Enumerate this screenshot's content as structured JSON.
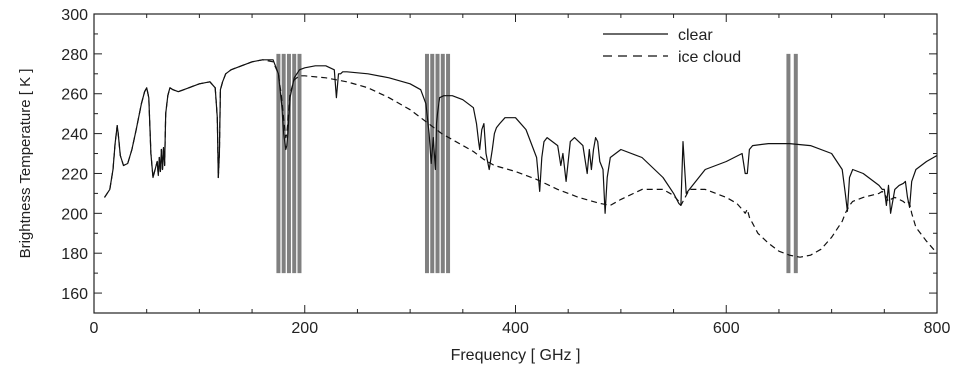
{
  "chart_data": {
    "type": "line",
    "title": "",
    "xlabel": "Frequency [ GHz ]",
    "ylabel": "Brightness Temperature [ K ]",
    "xlim": [
      0,
      800
    ],
    "ylim": [
      150,
      300
    ],
    "x_ticks": [
      0,
      200,
      400,
      600,
      800
    ],
    "y_ticks": [
      160,
      180,
      200,
      220,
      240,
      260,
      280,
      300
    ],
    "legend_position": "top-right",
    "grid": false,
    "band_groups": [
      {
        "x": [
          175,
          180,
          185,
          190,
          195
        ],
        "ymin": 170,
        "ymax": 280
      },
      {
        "x": [
          316,
          321,
          326,
          331,
          336
        ],
        "ymin": 170,
        "ymax": 280
      },
      {
        "x": [
          659,
          666
        ],
        "ymin": 170,
        "ymax": 280
      }
    ],
    "series": [
      {
        "name": "clear",
        "style": "solid",
        "x": [
          10,
          15,
          18,
          20,
          22,
          23,
          25,
          28,
          32,
          36,
          40,
          45,
          48,
          50,
          52,
          54,
          56,
          58,
          60,
          61,
          62,
          63,
          64,
          65,
          66,
          67,
          68,
          70,
          72,
          75,
          80,
          90,
          100,
          110,
          115,
          117,
          118,
          119,
          120,
          122,
          125,
          130,
          140,
          150,
          160,
          170,
          175,
          178,
          180,
          182,
          183,
          184,
          186,
          190,
          195,
          200,
          210,
          220,
          228,
          230,
          232,
          234,
          236,
          240,
          260,
          280,
          300,
          310,
          315,
          318,
          320,
          322,
          324,
          325,
          326,
          328,
          332,
          340,
          350,
          360,
          363,
          365,
          366,
          368,
          370,
          372,
          375,
          378,
          380,
          382,
          385,
          390,
          400,
          410,
          420,
          423,
          425,
          427,
          430,
          435,
          440,
          443,
          445,
          448,
          452,
          456,
          460,
          464,
          468,
          470,
          472,
          474,
          476,
          478,
          480,
          483,
          485,
          487,
          490,
          500,
          520,
          540,
          550,
          555,
          557,
          559,
          562,
          565,
          580,
          600,
          615,
          618,
          620,
          622,
          625,
          640,
          660,
          680,
          700,
          710,
          713,
          715,
          717,
          720,
          730,
          745,
          748,
          750,
          752,
          754,
          756,
          760,
          764,
          768,
          770,
          772,
          774,
          776,
          780,
          790,
          800
        ],
        "y": [
          208,
          212,
          222,
          235,
          244,
          240,
          229,
          224,
          225,
          232,
          242,
          255,
          261,
          263,
          258,
          230,
          218,
          222,
          226,
          219,
          228,
          221,
          232,
          222,
          233,
          224,
          250,
          259,
          263,
          262,
          261,
          263,
          265,
          266,
          263,
          248,
          218,
          230,
          262,
          266,
          270,
          272,
          274,
          276,
          277,
          277,
          270,
          255,
          240,
          232,
          234,
          240,
          258,
          268,
          272,
          273,
          274,
          274,
          272,
          258,
          270,
          270,
          271,
          271,
          270,
          268,
          265,
          262,
          255,
          240,
          225,
          238,
          222,
          245,
          250,
          258,
          259,
          259,
          257,
          253,
          245,
          236,
          232,
          242,
          245,
          230,
          222,
          232,
          240,
          243,
          245,
          248,
          248,
          242,
          228,
          211,
          228,
          236,
          238,
          236,
          234,
          224,
          230,
          216,
          236,
          238,
          236,
          234,
          220,
          232,
          222,
          232,
          238,
          236,
          226,
          222,
          200,
          218,
          228,
          232,
          228,
          218,
          210,
          205,
          204,
          236,
          210,
          212,
          222,
          226,
          230,
          220,
          220,
          232,
          234,
          235,
          235,
          234,
          230,
          222,
          210,
          201,
          218,
          222,
          220,
          214,
          212,
          212,
          204,
          214,
          200,
          212,
          214,
          215,
          216,
          208,
          203,
          216,
          222,
          226,
          229
        ]
      },
      {
        "name": "ice cloud",
        "style": "dashed",
        "x": [
          10,
          15,
          18,
          20,
          22,
          23,
          25,
          28,
          32,
          36,
          40,
          45,
          48,
          50,
          52,
          54,
          56,
          58,
          60,
          61,
          62,
          63,
          64,
          65,
          66,
          67,
          68,
          70,
          72,
          75,
          80,
          90,
          100,
          110,
          115,
          117,
          118,
          119,
          120,
          122,
          125,
          130,
          140,
          150,
          160,
          170,
          175,
          178,
          180,
          182,
          183,
          184,
          186,
          190,
          195,
          200,
          220,
          240,
          260,
          280,
          300,
          310,
          320,
          330,
          340,
          360,
          370,
          380,
          400,
          420,
          440,
          460,
          480,
          490,
          500,
          520,
          540,
          550,
          555,
          557,
          559,
          562,
          565,
          580,
          600,
          610,
          615,
          618,
          620,
          622,
          625,
          630,
          640,
          650,
          660,
          670,
          680,
          690,
          700,
          710,
          713,
          715,
          717,
          720,
          730,
          745,
          748,
          750,
          752,
          754,
          756,
          760,
          764,
          768,
          770,
          772,
          774,
          776,
          780,
          790,
          800
        ],
        "y": [
          208,
          212,
          222,
          235,
          244,
          240,
          229,
          224,
          225,
          232,
          242,
          255,
          261,
          263,
          258,
          230,
          218,
          222,
          226,
          219,
          228,
          221,
          232,
          222,
          233,
          224,
          250,
          259,
          263,
          262,
          261,
          263,
          265,
          266,
          263,
          248,
          218,
          230,
          262,
          266,
          270,
          272,
          274,
          276,
          277,
          276,
          270,
          258,
          247,
          238,
          240,
          246,
          260,
          267,
          269,
          269,
          268,
          266,
          263,
          258,
          252,
          248,
          244,
          240,
          237,
          231,
          227,
          224,
          221,
          217,
          212,
          208,
          205,
          204,
          207,
          212,
          212,
          209,
          206,
          204,
          206,
          209,
          212,
          212,
          208,
          205,
          202,
          200,
          202,
          198,
          195,
          190,
          185,
          181,
          179,
          178,
          179,
          182,
          188,
          196,
          200,
          202,
          204,
          206,
          208,
          210,
          211,
          210,
          208,
          206,
          207,
          208,
          207,
          206,
          205,
          206,
          205,
          200,
          193,
          186,
          180
        ]
      }
    ]
  }
}
